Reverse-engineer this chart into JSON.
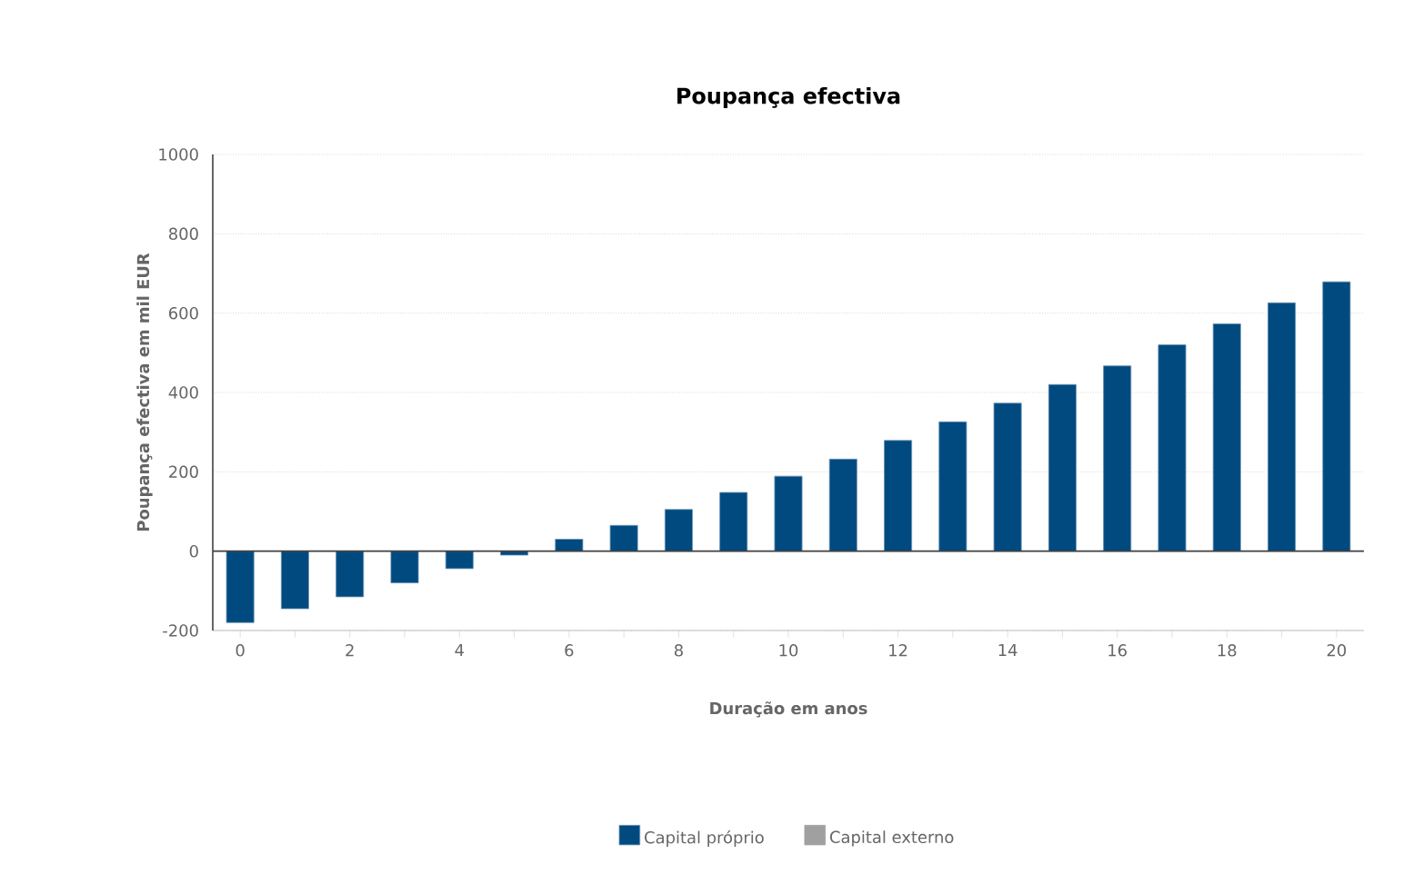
{
  "chart_data": {
    "type": "bar",
    "title": "Poupança efectiva",
    "xlabel": "Duração em anos",
    "ylabel": "Poupança efectiva em mil EUR",
    "x": [
      0,
      1,
      2,
      3,
      4,
      5,
      6,
      7,
      8,
      9,
      10,
      11,
      12,
      13,
      14,
      15,
      16,
      17,
      18,
      19,
      20
    ],
    "series": [
      {
        "name": "Capital próprio",
        "color": "#004a80",
        "values": [
          -180,
          -145,
          -115,
          -80,
          -44,
          -10,
          30,
          65,
          105,
          148,
          189,
          232,
          279,
          326,
          373,
          420,
          467,
          520,
          573,
          626,
          679
        ]
      },
      {
        "name": "Capital externo",
        "color": "#a0a0a0",
        "values": [
          null,
          null,
          null,
          null,
          null,
          null,
          null,
          null,
          null,
          null,
          null,
          null,
          null,
          null,
          null,
          null,
          null,
          null,
          null,
          null,
          null
        ]
      }
    ],
    "xlim": [
      -0.5,
      20.5
    ],
    "xticks": [
      {
        "value": 0,
        "label": "0"
      },
      {
        "value": 1,
        "label": null
      },
      {
        "value": 2,
        "label": "2"
      },
      {
        "value": 3,
        "label": null
      },
      {
        "value": 4,
        "label": "4"
      },
      {
        "value": 5,
        "label": null
      },
      {
        "value": 6,
        "label": "6"
      },
      {
        "value": 7,
        "label": null
      },
      {
        "value": 8,
        "label": "8"
      },
      {
        "value": 9,
        "label": null
      },
      {
        "value": 10,
        "label": "10"
      },
      {
        "value": 11,
        "label": null
      },
      {
        "value": 12,
        "label": "12"
      },
      {
        "value": 13,
        "label": null
      },
      {
        "value": 14,
        "label": "14"
      },
      {
        "value": 15,
        "label": null
      },
      {
        "value": 16,
        "label": "16"
      },
      {
        "value": 17,
        "label": null
      },
      {
        "value": 18,
        "label": "18"
      },
      {
        "value": 19,
        "label": null
      },
      {
        "value": 20,
        "label": "20"
      }
    ],
    "ylim": [
      -200,
      1000
    ],
    "yticks": [
      -200,
      0,
      200,
      400,
      600,
      800,
      1000
    ],
    "grid": "y",
    "legend": "bottom"
  }
}
